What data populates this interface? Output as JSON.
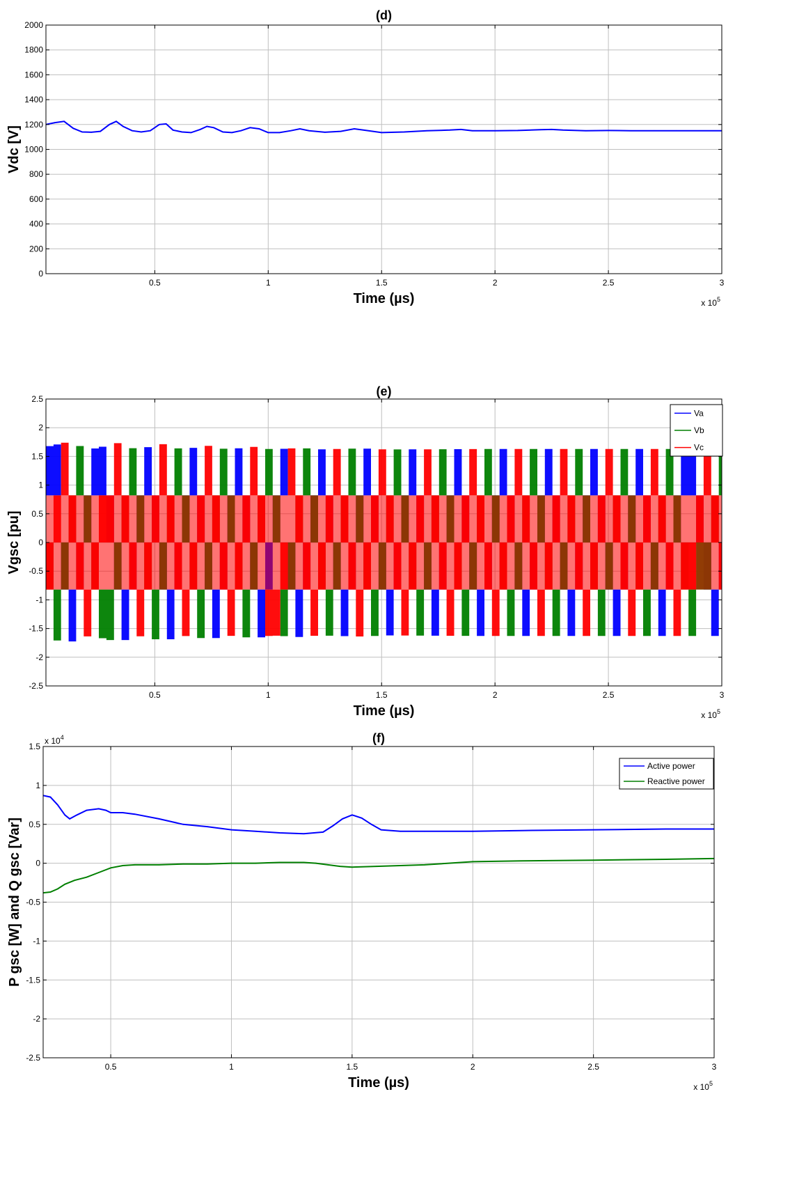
{
  "colors": {
    "blue": "#0000ff",
    "green": "#007f00",
    "red": "#ff0000",
    "grid": "#bfbfbf"
  },
  "chart_data": [
    {
      "type": "line",
      "title": "(d)",
      "xlabel": "Time (µs)",
      "ylabel": "Vdc [V]",
      "x_multiplier": "x 10",
      "x_exponent": "5",
      "xlim": [
        0.02,
        3
      ],
      "ylim": [
        0,
        2000
      ],
      "x_ticks": [
        0.5,
        1,
        1.5,
        2,
        2.5,
        3
      ],
      "x_tick_labels": [
        "0.5",
        "1",
        "1.5",
        "2",
        "2.5",
        "3"
      ],
      "y_ticks": [
        0,
        200,
        400,
        600,
        800,
        1000,
        1200,
        1400,
        1600,
        1800,
        2000
      ],
      "y_tick_labels": [
        "0",
        "200",
        "400",
        "600",
        "800",
        "1000",
        "1200",
        "1400",
        "1600",
        "1800",
        "2000"
      ],
      "grid": true,
      "series": [
        {
          "color": "#0000ff",
          "x": [
            0.02,
            0.06,
            0.1,
            0.14,
            0.18,
            0.22,
            0.26,
            0.3,
            0.33,
            0.36,
            0.4,
            0.44,
            0.48,
            0.52,
            0.55,
            0.58,
            0.62,
            0.66,
            0.7,
            0.73,
            0.76,
            0.8,
            0.84,
            0.88,
            0.92,
            0.96,
            1.0,
            1.05,
            1.1,
            1.14,
            1.18,
            1.25,
            1.32,
            1.38,
            1.42,
            1.5,
            1.6,
            1.7,
            1.8,
            1.85,
            1.9,
            2.0,
            2.1,
            2.2,
            2.25,
            2.3,
            2.4,
            2.5,
            2.6,
            2.7,
            2.8,
            2.9,
            3.0
          ],
          "y": [
            1200,
            1215,
            1225,
            1170,
            1140,
            1138,
            1145,
            1200,
            1225,
            1185,
            1150,
            1140,
            1150,
            1200,
            1205,
            1155,
            1140,
            1135,
            1160,
            1185,
            1175,
            1140,
            1135,
            1150,
            1175,
            1165,
            1135,
            1135,
            1150,
            1165,
            1150,
            1138,
            1145,
            1165,
            1155,
            1135,
            1140,
            1150,
            1155,
            1160,
            1150,
            1150,
            1152,
            1158,
            1160,
            1155,
            1150,
            1152,
            1150,
            1150,
            1150,
            1150,
            1150
          ]
        }
      ]
    },
    {
      "type": "line",
      "title": "(e)",
      "xlabel": "Time (µs)",
      "ylabel": "Vgsc [pu]",
      "x_multiplier": "x 10",
      "x_exponent": "5",
      "xlim": [
        0.02,
        3
      ],
      "ylim": [
        -2.5,
        2.5
      ],
      "x_ticks": [
        0.5,
        1,
        1.5,
        2,
        2.5,
        3
      ],
      "x_tick_labels": [
        "0.5",
        "1",
        "1.5",
        "2",
        "2.5",
        "3"
      ],
      "y_ticks": [
        -2.5,
        -2,
        -1.5,
        -1,
        -0.5,
        0,
        0.5,
        1,
        1.5,
        2,
        2.5
      ],
      "y_tick_labels": [
        "-2.5",
        "-2",
        "-1.5",
        "-1",
        "-0.5",
        "0",
        "0.5",
        "1",
        "1.5",
        "2",
        "2.5"
      ],
      "grid": true,
      "legend_position": "top-right",
      "switching_levels": [
        -1.63,
        -0.82,
        0,
        0.82,
        1.63
      ],
      "envelope": {
        "x": [
          0.02,
          0.1,
          0.2,
          0.33,
          0.4,
          0.53,
          0.6,
          0.73,
          0.8,
          0.93,
          1.0,
          1.13,
          1.2,
          1.4,
          1.5,
          2.0,
          2.5,
          3.0
        ],
        "peak": [
          1.68,
          1.75,
          1.62,
          1.74,
          1.62,
          1.72,
          1.62,
          1.69,
          1.62,
          1.67,
          1.62,
          1.65,
          1.62,
          1.64,
          1.62,
          1.63,
          1.63,
          1.63
        ]
      },
      "series": [
        {
          "name": "Va",
          "color": "#0000ff"
        },
        {
          "name": "Vb",
          "color": "#007f00"
        },
        {
          "name": "Vc",
          "color": "#ff0000"
        }
      ]
    },
    {
      "type": "line",
      "title": "(f)",
      "xlabel": "Time (µs)",
      "ylabel": "P gsc [W] and Q gsc [Var]",
      "x_multiplier": "x 10",
      "x_exponent": "5",
      "y_multiplier": "x 10",
      "y_exponent": "4",
      "xlim": [
        0.22,
        3
      ],
      "ylim": [
        -2.5,
        1.5
      ],
      "x_ticks": [
        0.5,
        1,
        1.5,
        2,
        2.5,
        3
      ],
      "x_tick_labels": [
        "0.5",
        "1",
        "1.5",
        "2",
        "2.5",
        "3"
      ],
      "y_ticks": [
        -2.5,
        -2,
        -1.5,
        -1,
        -0.5,
        0,
        0.5,
        1,
        1.5
      ],
      "y_tick_labels": [
        "-2.5",
        "-2",
        "-1.5",
        "-1",
        "-0.5",
        "0",
        "0.5",
        "1",
        "1.5"
      ],
      "grid": true,
      "legend_position": "top-right",
      "series": [
        {
          "name": "Active power",
          "color": "#0000ff",
          "x": [
            0.22,
            0.25,
            0.28,
            0.31,
            0.33,
            0.36,
            0.4,
            0.45,
            0.48,
            0.5,
            0.55,
            0.6,
            0.7,
            0.8,
            0.9,
            1.0,
            1.1,
            1.2,
            1.3,
            1.38,
            1.42,
            1.46,
            1.5,
            1.54,
            1.58,
            1.62,
            1.7,
            1.8,
            2.0,
            2.2,
            2.5,
            2.8,
            3.0
          ],
          "y": [
            0.87,
            0.85,
            0.75,
            0.62,
            0.57,
            0.62,
            0.68,
            0.7,
            0.68,
            0.65,
            0.65,
            0.63,
            0.57,
            0.5,
            0.47,
            0.43,
            0.41,
            0.39,
            0.38,
            0.4,
            0.48,
            0.57,
            0.62,
            0.58,
            0.5,
            0.43,
            0.41,
            0.41,
            0.41,
            0.42,
            0.43,
            0.44,
            0.44
          ]
        },
        {
          "name": "Reactive power",
          "color": "#007f00",
          "x": [
            0.22,
            0.25,
            0.28,
            0.31,
            0.35,
            0.4,
            0.45,
            0.5,
            0.55,
            0.6,
            0.7,
            0.8,
            0.9,
            1.0,
            1.1,
            1.2,
            1.3,
            1.35,
            1.4,
            1.45,
            1.5,
            1.6,
            1.7,
            1.8,
            2.0,
            2.2,
            2.5,
            2.8,
            3.0
          ],
          "y": [
            -0.38,
            -0.37,
            -0.33,
            -0.27,
            -0.22,
            -0.18,
            -0.12,
            -0.06,
            -0.03,
            -0.02,
            -0.02,
            -0.01,
            -0.01,
            0.0,
            0.0,
            0.01,
            0.01,
            0.0,
            -0.02,
            -0.04,
            -0.05,
            -0.04,
            -0.03,
            -0.02,
            0.02,
            0.03,
            0.04,
            0.05,
            0.06
          ]
        }
      ]
    }
  ]
}
